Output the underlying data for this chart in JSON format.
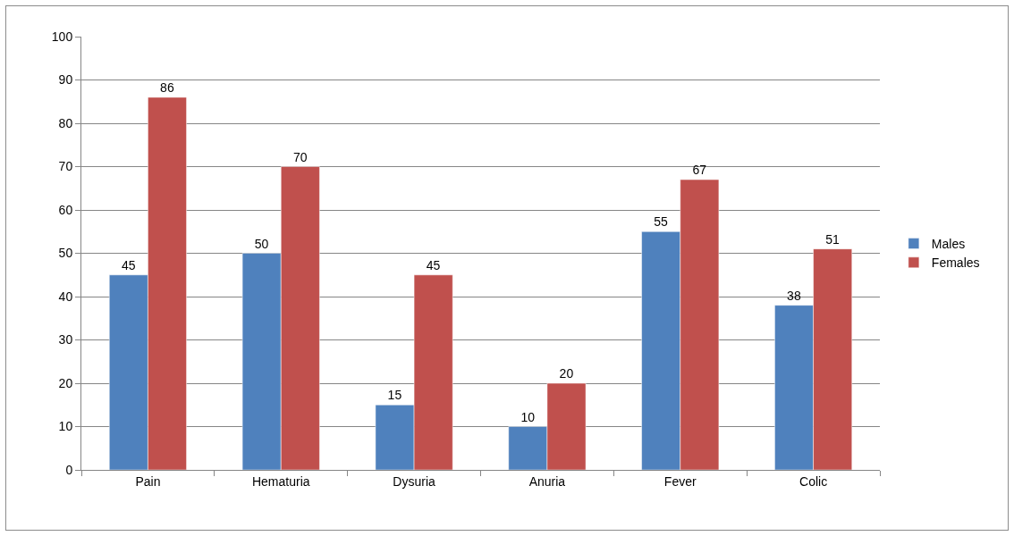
{
  "chart_data": {
    "type": "bar",
    "categories": [
      "Pain",
      "Hematuria",
      "Dysuria",
      "Anuria",
      "Fever",
      "Colic"
    ],
    "series": [
      {
        "name": "Males",
        "color": "#4f81bd",
        "values": [
          45,
          50,
          15,
          10,
          55,
          38
        ]
      },
      {
        "name": "Females",
        "color": "#c0504d",
        "values": [
          86,
          70,
          45,
          20,
          67,
          51
        ]
      }
    ],
    "ylim": [
      0,
      100
    ],
    "yticks": [
      0,
      10,
      20,
      30,
      40,
      50,
      60,
      70,
      80,
      90,
      100
    ],
    "grid": "y",
    "legend": "right",
    "data_labels": true
  }
}
